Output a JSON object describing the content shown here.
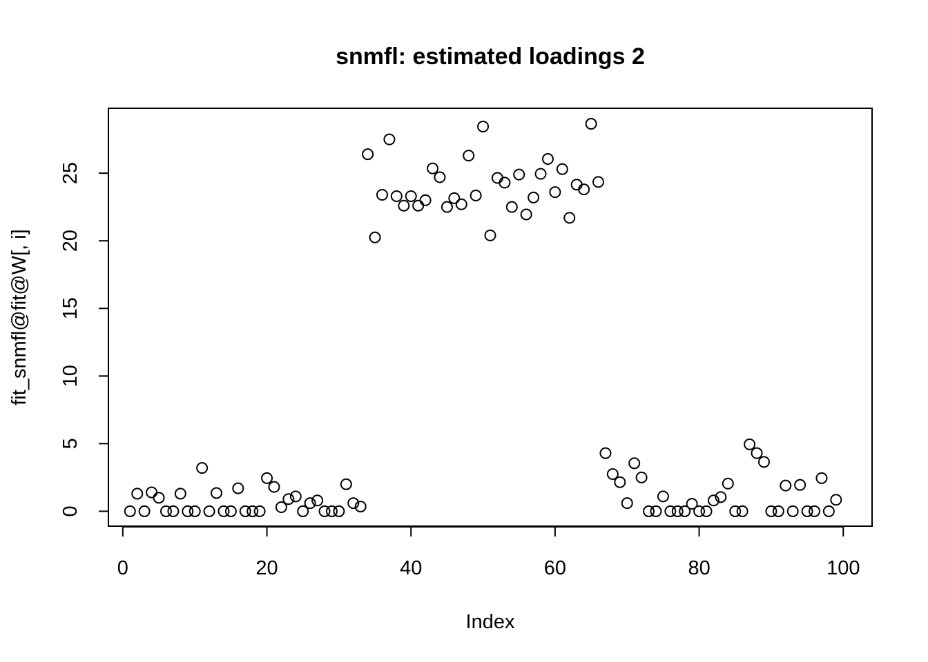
{
  "chart_data": {
    "type": "scatter",
    "title": "snmfl: estimated loadings 2",
    "xlabel": "Index",
    "ylabel": "fit_snmfl@fit@W[, i]",
    "xlim": [
      -2,
      104
    ],
    "ylim": [
      -1.1,
      29.8
    ],
    "xticks": [
      0,
      20,
      40,
      60,
      80,
      100
    ],
    "yticks": [
      0,
      5,
      10,
      15,
      20,
      25
    ],
    "xtick_labels": [
      "0",
      "20",
      "40",
      "60",
      "80",
      "100"
    ],
    "ytick_labels": [
      "0",
      "5",
      "10",
      "15",
      "20",
      "25"
    ],
    "grid": false,
    "marker": "open-circle",
    "x": [
      1,
      2,
      3,
      4,
      5,
      6,
      7,
      8,
      9,
      10,
      11,
      12,
      13,
      14,
      15,
      16,
      17,
      18,
      19,
      20,
      21,
      22,
      23,
      24,
      25,
      26,
      27,
      28,
      29,
      30,
      31,
      32,
      33,
      34,
      35,
      36,
      37,
      38,
      39,
      40,
      41,
      42,
      43,
      44,
      45,
      46,
      47,
      48,
      49,
      50,
      51,
      52,
      53,
      54,
      55,
      56,
      57,
      58,
      59,
      60,
      61,
      62,
      63,
      64,
      65,
      66,
      67,
      68,
      69,
      70,
      71,
      72,
      73,
      74,
      75,
      76,
      77,
      78,
      79,
      80,
      81,
      82,
      83,
      84,
      85,
      86,
      87,
      88,
      89,
      90,
      91,
      92,
      93,
      94,
      95,
      96,
      97,
      98,
      99
    ],
    "y": [
      0.0,
      1.3,
      0.0,
      1.4,
      1.0,
      0.0,
      0.0,
      1.3,
      0.0,
      0.0,
      3.2,
      0.0,
      1.35,
      0.0,
      0.0,
      1.7,
      0.0,
      0.0,
      0.0,
      2.45,
      1.8,
      0.3,
      0.9,
      1.1,
      0.0,
      0.6,
      0.8,
      0.0,
      0.0,
      0.0,
      2.0,
      0.6,
      0.35,
      26.4,
      20.25,
      23.4,
      27.5,
      23.3,
      22.6,
      23.3,
      22.6,
      23.0,
      25.35,
      24.7,
      22.5,
      23.15,
      22.7,
      26.3,
      23.35,
      28.45,
      20.4,
      24.65,
      24.3,
      22.5,
      24.9,
      21.95,
      23.2,
      24.95,
      26.05,
      23.6,
      25.3,
      21.7,
      24.15,
      23.8,
      28.65,
      24.35,
      4.3,
      2.75,
      2.15,
      0.6,
      3.55,
      2.5,
      0.0,
      0.0,
      1.1,
      0.0,
      0.0,
      0.0,
      0.55,
      0.0,
      0.0,
      0.8,
      1.05,
      2.05,
      0.0,
      0.0,
      4.95,
      4.3,
      3.65,
      0.0,
      0.0,
      1.9,
      0.0,
      1.95,
      0.0,
      0.0,
      2.45,
      0.0,
      0.85
    ]
  }
}
